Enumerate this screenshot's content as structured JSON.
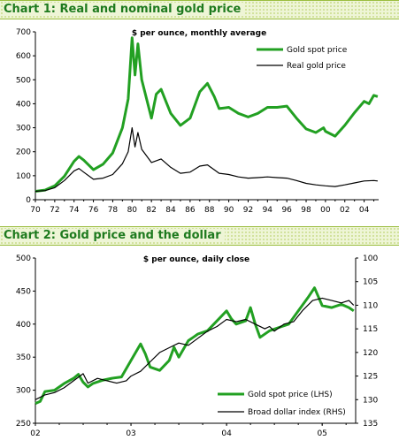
{
  "chart_data": [
    {
      "type": "line",
      "title": "Chart 1: Real and nominal gold price",
      "subtitle": "$ per ounce, monthly average",
      "xlabel": "",
      "ylabel": "",
      "x_ticks": [
        "70",
        "72",
        "74",
        "76",
        "78",
        "80",
        "82",
        "84",
        "86",
        "88",
        "90",
        "92",
        "94",
        "96",
        "98",
        "00",
        "02",
        "04"
      ],
      "y_ticks": [
        0,
        100,
        200,
        300,
        400,
        500,
        600,
        700
      ],
      "xlim": [
        1970,
        2005.5
      ],
      "ylim": [
        0,
        700
      ],
      "grid": false,
      "legend": "top-right",
      "series": [
        {
          "name": "Gold spot price",
          "color": "#22a022",
          "points": [
            [
              1970,
              35
            ],
            [
              1971,
              40
            ],
            [
              1972,
              58
            ],
            [
              1973,
              98
            ],
            [
              1974,
              160
            ],
            [
              1974.5,
              180
            ],
            [
              1975,
              165
            ],
            [
              1976,
              125
            ],
            [
              1977,
              148
            ],
            [
              1978,
              195
            ],
            [
              1979,
              300
            ],
            [
              1979.6,
              420
            ],
            [
              1980.0,
              675
            ],
            [
              1980.3,
              520
            ],
            [
              1980.6,
              650
            ],
            [
              1981,
              500
            ],
            [
              1981.5,
              420
            ],
            [
              1982,
              340
            ],
            [
              1982.5,
              440
            ],
            [
              1983,
              460
            ],
            [
              1983.5,
              410
            ],
            [
              1984,
              360
            ],
            [
              1985,
              310
            ],
            [
              1986,
              340
            ],
            [
              1987,
              450
            ],
            [
              1987.8,
              485
            ],
            [
              1988.5,
              430
            ],
            [
              1989,
              380
            ],
            [
              1990,
              385
            ],
            [
              1991,
              360
            ],
            [
              1992,
              345
            ],
            [
              1993,
              360
            ],
            [
              1994,
              385
            ],
            [
              1995,
              385
            ],
            [
              1996,
              390
            ],
            [
              1997,
              340
            ],
            [
              1998,
              295
            ],
            [
              1999,
              280
            ],
            [
              1999.8,
              300
            ],
            [
              2000,
              285
            ],
            [
              2001,
              265
            ],
            [
              2002,
              310
            ],
            [
              2003,
              363
            ],
            [
              2004,
              410
            ],
            [
              2004.5,
              400
            ],
            [
              2005,
              435
            ],
            [
              2005.4,
              430
            ]
          ]
        },
        {
          "name": "Real gold price",
          "color": "#000000",
          "points": [
            [
              1970,
              35
            ],
            [
              1971,
              38
            ],
            [
              1972,
              50
            ],
            [
              1973,
              80
            ],
            [
              1974,
              120
            ],
            [
              1974.5,
              130
            ],
            [
              1975,
              115
            ],
            [
              1976,
              85
            ],
            [
              1977,
              90
            ],
            [
              1978,
              105
            ],
            [
              1979,
              150
            ],
            [
              1979.6,
              200
            ],
            [
              1980.0,
              300
            ],
            [
              1980.3,
              220
            ],
            [
              1980.6,
              280
            ],
            [
              1981,
              210
            ],
            [
              1982,
              155
            ],
            [
              1983,
              170
            ],
            [
              1984,
              135
            ],
            [
              1985,
              110
            ],
            [
              1986,
              115
            ],
            [
              1987,
              140
            ],
            [
              1987.8,
              145
            ],
            [
              1988.5,
              125
            ],
            [
              1989,
              110
            ],
            [
              1990,
              105
            ],
            [
              1991,
              95
            ],
            [
              1992,
              90
            ],
            [
              1993,
              92
            ],
            [
              1994,
              95
            ],
            [
              1995,
              92
            ],
            [
              1996,
              90
            ],
            [
              1997,
              80
            ],
            [
              1998,
              68
            ],
            [
              1999,
              62
            ],
            [
              2000,
              58
            ],
            [
              2001,
              55
            ],
            [
              2002,
              62
            ],
            [
              2003,
              70
            ],
            [
              2004,
              78
            ],
            [
              2005,
              80
            ],
            [
              2005.4,
              78
            ]
          ]
        }
      ]
    },
    {
      "type": "line",
      "title": "Chart 2: Gold price and the dollar",
      "subtitle": "$ per ounce, daily close",
      "xlabel": "",
      "ylabel": "",
      "x_ticks": [
        "02",
        "03",
        "04",
        "05"
      ],
      "y_ticks_left": [
        250,
        300,
        350,
        400,
        450,
        500
      ],
      "y_ticks_right": [
        100,
        105,
        110,
        115,
        120,
        125,
        130,
        135
      ],
      "y_right_inverted": true,
      "xlim": [
        2002,
        2005.35
      ],
      "ylim_left": [
        250,
        500
      ],
      "ylim_right": [
        100,
        135
      ],
      "grid": false,
      "legend": "bottom-right",
      "series": [
        {
          "name": "Gold spot price (LHS)",
          "axis": "left",
          "color": "#22a022",
          "points": [
            [
              2002.0,
              280
            ],
            [
              2002.05,
              283
            ],
            [
              2002.1,
              298
            ],
            [
              2002.2,
              300
            ],
            [
              2002.3,
              310
            ],
            [
              2002.4,
              318
            ],
            [
              2002.45,
              324
            ],
            [
              2002.5,
              312
            ],
            [
              2002.55,
              305
            ],
            [
              2002.6,
              310
            ],
            [
              2002.7,
              315
            ],
            [
              2002.8,
              318
            ],
            [
              2002.9,
              320
            ],
            [
              2003.0,
              345
            ],
            [
              2003.1,
              370
            ],
            [
              2003.15,
              355
            ],
            [
              2003.2,
              335
            ],
            [
              2003.3,
              330
            ],
            [
              2003.4,
              345
            ],
            [
              2003.45,
              365
            ],
            [
              2003.5,
              350
            ],
            [
              2003.6,
              375
            ],
            [
              2003.65,
              380
            ],
            [
              2003.7,
              385
            ],
            [
              2003.8,
              390
            ],
            [
              2003.9,
              405
            ],
            [
              2004.0,
              420
            ],
            [
              2004.05,
              408
            ],
            [
              2004.1,
              400
            ],
            [
              2004.2,
              405
            ],
            [
              2004.25,
              425
            ],
            [
              2004.3,
              400
            ],
            [
              2004.35,
              380
            ],
            [
              2004.45,
              390
            ],
            [
              2004.55,
              395
            ],
            [
              2004.65,
              400
            ],
            [
              2004.75,
              420
            ],
            [
              2004.85,
              440
            ],
            [
              2004.92,
              455
            ],
            [
              2005.0,
              428
            ],
            [
              2005.1,
              425
            ],
            [
              2005.2,
              430
            ],
            [
              2005.28,
              425
            ],
            [
              2005.33,
              420
            ]
          ]
        },
        {
          "name": "Broad dollar index (RHS)",
          "axis": "right",
          "color": "#000000",
          "points": [
            [
              2002.0,
              130
            ],
            [
              2002.1,
              129
            ],
            [
              2002.2,
              128.5
            ],
            [
              2002.3,
              127.5
            ],
            [
              2002.4,
              126
            ],
            [
              2002.5,
              124.5
            ],
            [
              2002.55,
              126.5
            ],
            [
              2002.65,
              125.5
            ],
            [
              2002.75,
              126
            ],
            [
              2002.85,
              126.5
            ],
            [
              2002.95,
              126
            ],
            [
              2003.0,
              125
            ],
            [
              2003.1,
              124
            ],
            [
              2003.2,
              122
            ],
            [
              2003.3,
              120
            ],
            [
              2003.4,
              119
            ],
            [
              2003.5,
              118
            ],
            [
              2003.6,
              118.5
            ],
            [
              2003.7,
              117
            ],
            [
              2003.8,
              115.5
            ],
            [
              2003.9,
              114.5
            ],
            [
              2004.0,
              113
            ],
            [
              2004.1,
              113.5
            ],
            [
              2004.2,
              113
            ],
            [
              2004.3,
              114
            ],
            [
              2004.4,
              115
            ],
            [
              2004.45,
              114.5
            ],
            [
              2004.5,
              115.5
            ],
            [
              2004.6,
              114
            ],
            [
              2004.7,
              113.5
            ],
            [
              2004.8,
              111
            ],
            [
              2004.9,
              109
            ],
            [
              2005.0,
              108.5
            ],
            [
              2005.1,
              109
            ],
            [
              2005.2,
              109.5
            ],
            [
              2005.28,
              109
            ],
            [
              2005.33,
              110
            ]
          ]
        }
      ]
    }
  ]
}
